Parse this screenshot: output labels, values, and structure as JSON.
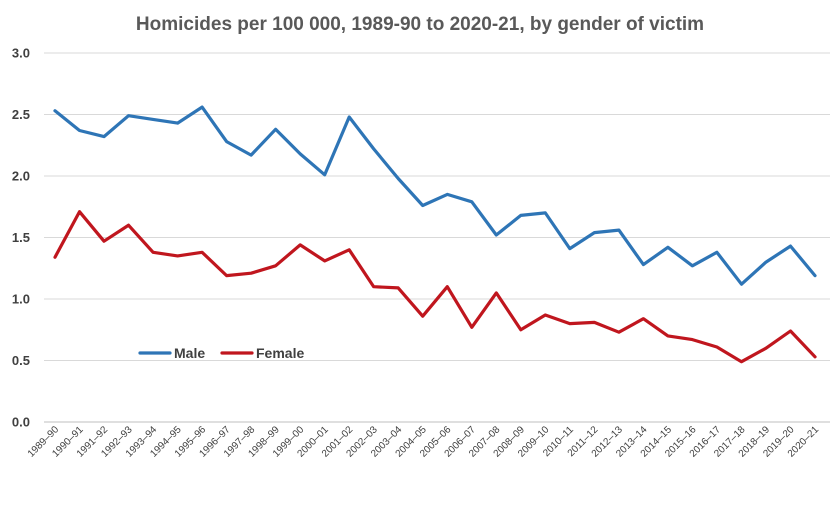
{
  "chart_data": {
    "type": "line",
    "title": "Homicides per 100 000, 1989-90 to 2020-21, by gender of victim",
    "xlabel": "",
    "ylabel": "",
    "ylim": [
      0,
      3
    ],
    "yticks": [
      "0.0",
      "0.5",
      "1.0",
      "1.5",
      "2.0",
      "2.5",
      "3.0"
    ],
    "grid": true,
    "legend_position": "lower-left",
    "categories": [
      "1989–90",
      "1990–91",
      "1991–92",
      "1992–93",
      "1993–94",
      "1994–95",
      "1995–96",
      "1996–97",
      "1997–98",
      "1998–99",
      "1999–00",
      "2000–01",
      "2001–02",
      "2002–03",
      "2003–04",
      "2004–05",
      "2005–06",
      "2006–07",
      "2007–08",
      "2008–09",
      "2009–10",
      "2010–11",
      "2011–12",
      "2012–13",
      "2013–14",
      "2014–15",
      "2015–16",
      "2016–17",
      "2017–18",
      "2018–19",
      "2019–20",
      "2020–21"
    ],
    "series": [
      {
        "name": "Male",
        "color": "#2E75B6",
        "values": [
          2.53,
          2.37,
          2.32,
          2.49,
          2.46,
          2.43,
          2.56,
          2.28,
          2.17,
          2.38,
          2.18,
          2.01,
          2.48,
          2.22,
          1.98,
          1.76,
          1.85,
          1.79,
          1.52,
          1.68,
          1.7,
          1.41,
          1.54,
          1.56,
          1.28,
          1.42,
          1.27,
          1.38,
          1.12,
          1.3,
          1.43,
          1.19
        ]
      },
      {
        "name": "Female",
        "color": "#C0161E",
        "values": [
          1.34,
          1.71,
          1.47,
          1.6,
          1.38,
          1.35,
          1.38,
          1.19,
          1.21,
          1.27,
          1.44,
          1.31,
          1.4,
          1.1,
          1.09,
          0.86,
          1.1,
          0.77,
          1.05,
          0.75,
          0.87,
          0.8,
          0.81,
          0.73,
          0.84,
          0.7,
          0.67,
          0.61,
          0.49,
          0.6,
          0.74,
          0.53
        ]
      }
    ]
  }
}
